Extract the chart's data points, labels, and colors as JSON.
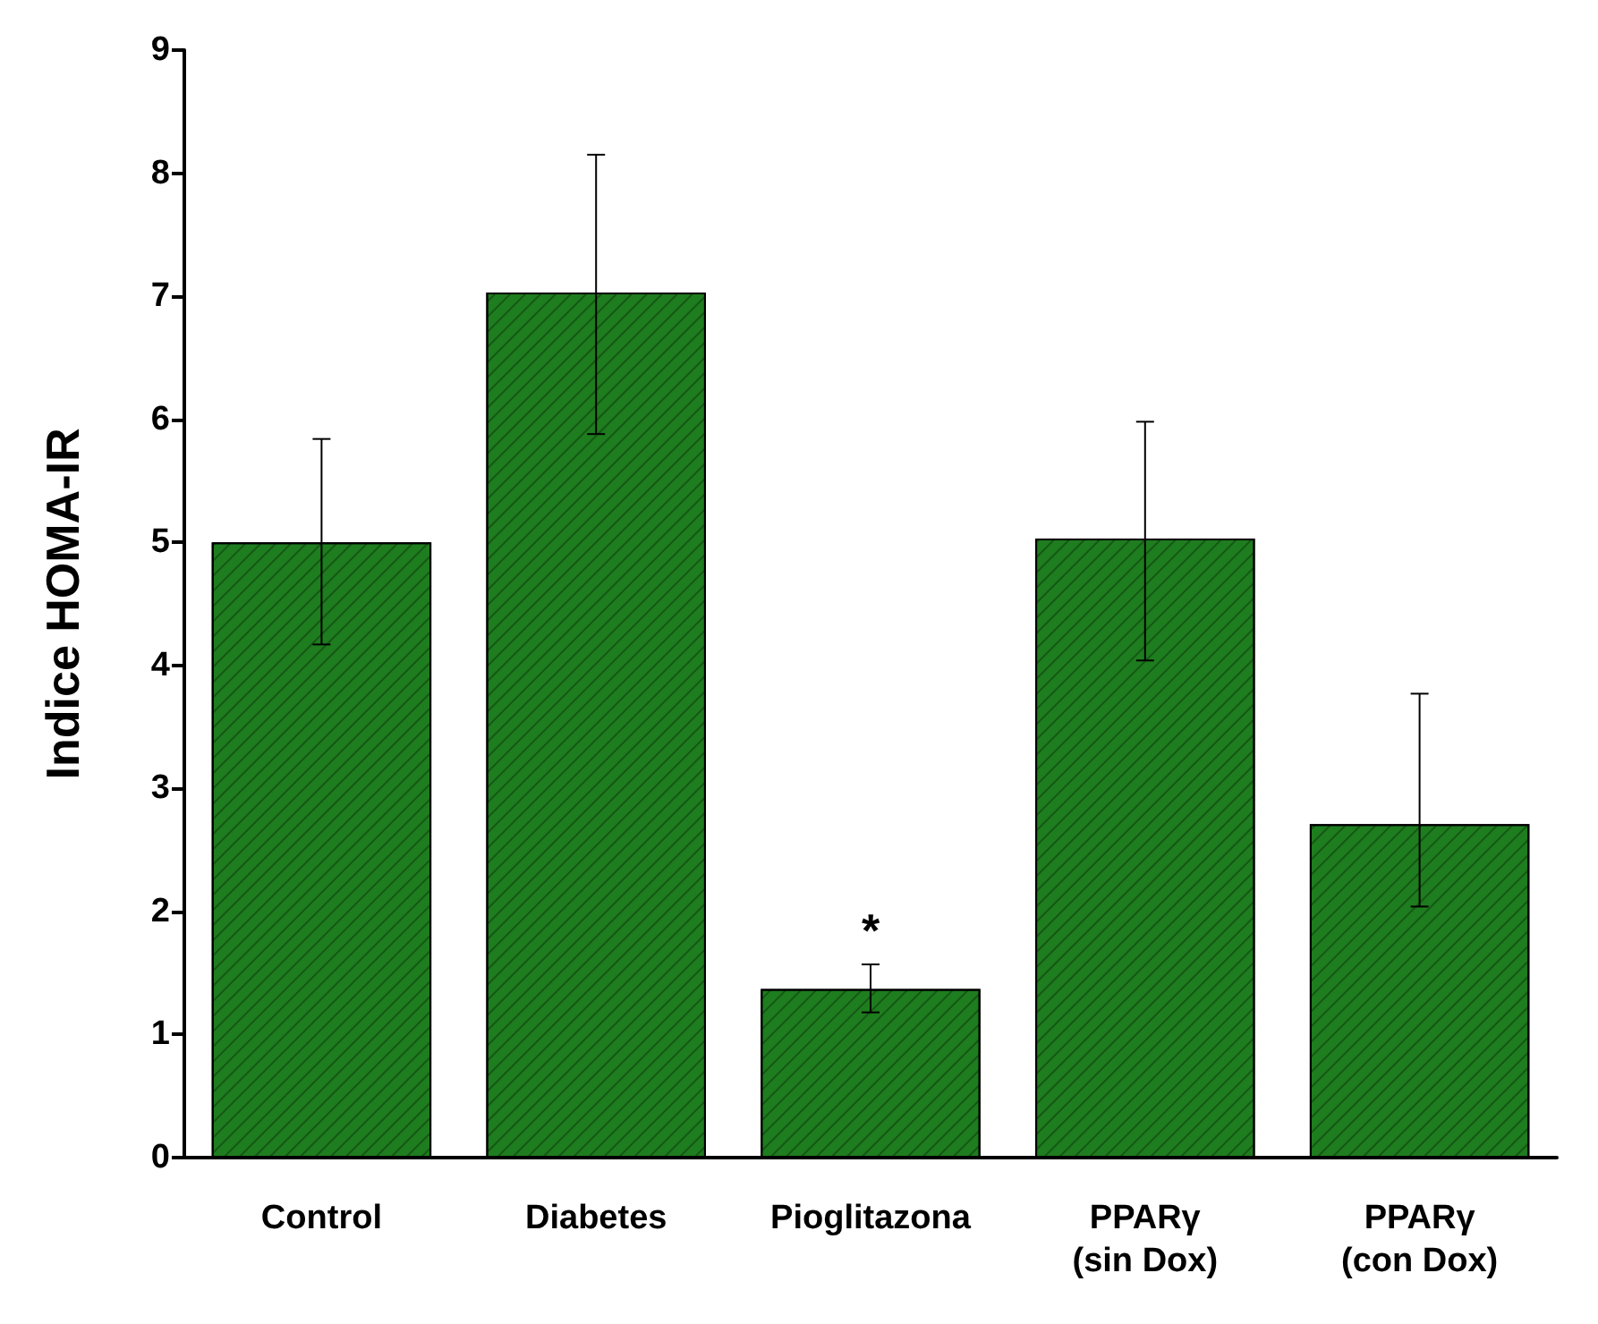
{
  "chart_data": {
    "type": "bar",
    "ylabel": "Indice HOMA-IR",
    "categories": [
      "Control",
      "Diabetes",
      "Pioglitazona",
      "PPARγ\n(sin Dox)",
      "PPARγ\n(con Dox)"
    ],
    "values": [
      5.0,
      7.03,
      1.37,
      5.03,
      2.71
    ],
    "errors": [
      [
        4.17,
        5.84
      ],
      [
        5.88,
        8.15
      ],
      [
        1.18,
        1.57
      ],
      [
        4.04,
        5.98
      ],
      [
        2.04,
        3.77
      ]
    ],
    "color": "#1e7d1e",
    "ylim": [
      0,
      9
    ],
    "yticks": [
      0,
      1,
      2,
      3,
      4,
      5,
      6,
      7,
      8,
      9
    ],
    "grid": false,
    "value_labels": [
      null,
      null,
      "*",
      null,
      null
    ]
  }
}
